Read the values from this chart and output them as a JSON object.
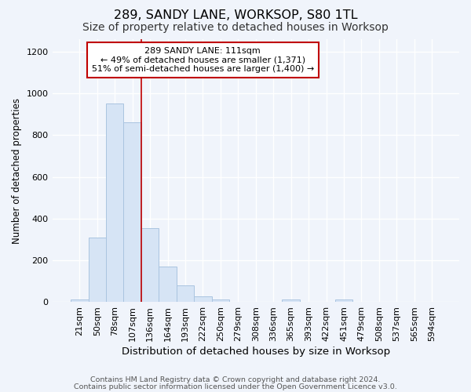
{
  "title1": "289, SANDY LANE, WORKSOP, S80 1TL",
  "title2": "Size of property relative to detached houses in Worksop",
  "xlabel": "Distribution of detached houses by size in Worksop",
  "ylabel": "Number of detached properties",
  "footer1": "Contains HM Land Registry data © Crown copyright and database right 2024.",
  "footer2": "Contains public sector information licensed under the Open Government Licence v3.0.",
  "bar_labels": [
    "21sqm",
    "50sqm",
    "78sqm",
    "107sqm",
    "136sqm",
    "164sqm",
    "193sqm",
    "222sqm",
    "250sqm",
    "279sqm",
    "308sqm",
    "336sqm",
    "365sqm",
    "393sqm",
    "422sqm",
    "451sqm",
    "479sqm",
    "508sqm",
    "537sqm",
    "565sqm",
    "594sqm"
  ],
  "bar_values": [
    10,
    310,
    950,
    860,
    355,
    170,
    80,
    25,
    10,
    0,
    0,
    0,
    10,
    0,
    0,
    10,
    0,
    0,
    0,
    0,
    0
  ],
  "bar_color": "#d6e4f5",
  "bar_edge_color": "#aac4e0",
  "vline_x_idx": 3.5,
  "vline_color": "#c00000",
  "annotation_line1": "289 SANDY LANE: 111sqm",
  "annotation_line2": "← 49% of detached houses are smaller (1,371)",
  "annotation_line3": "51% of semi-detached houses are larger (1,400) →",
  "annotation_box_color": "white",
  "annotation_box_edge": "#c00000",
  "ylim": [
    0,
    1260
  ],
  "yticks": [
    0,
    200,
    400,
    600,
    800,
    1000,
    1200
  ],
  "bg_color": "#f0f4fb",
  "plot_bg_color": "#f0f4fb",
  "grid_color": "white",
  "title1_fontsize": 11.5,
  "title2_fontsize": 10,
  "xlabel_fontsize": 9.5,
  "ylabel_fontsize": 8.5,
  "tick_fontsize": 8,
  "annotation_fontsize": 8,
  "footer_fontsize": 6.8
}
